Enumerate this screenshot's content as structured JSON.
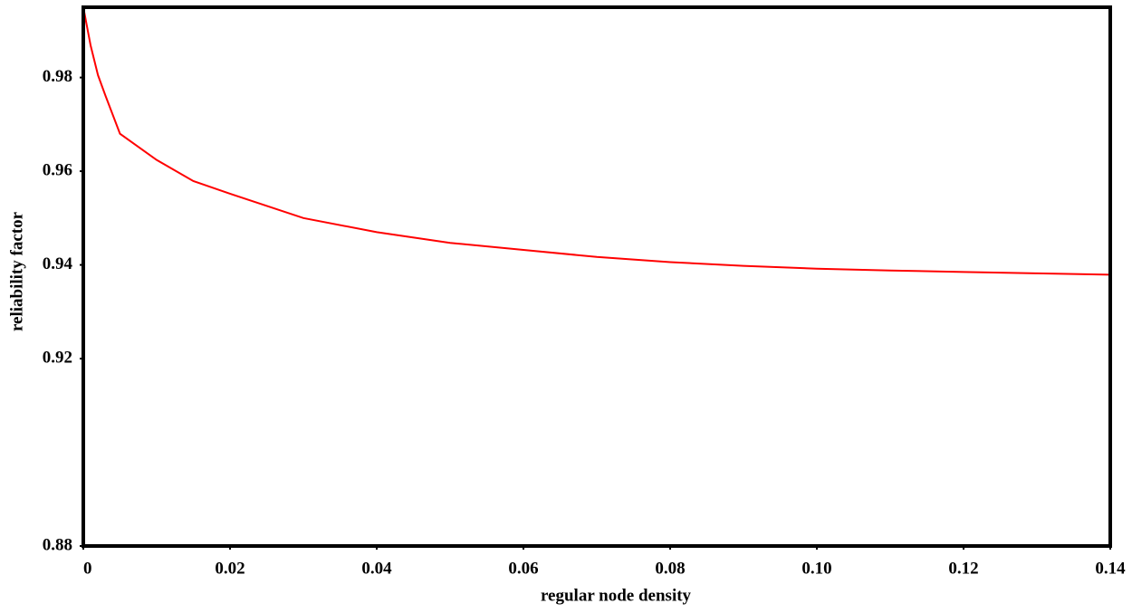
{
  "chart_data": {
    "type": "line",
    "x_label": "regular node density",
    "y_label": "reliability factor",
    "x": [
      0,
      0.001,
      0.002,
      0.003,
      0.005,
      0.01,
      0.015,
      0.02,
      0.03,
      0.04,
      0.05,
      0.06,
      0.07,
      0.08,
      0.09,
      0.1,
      0.11,
      0.12,
      0.13,
      0.14
    ],
    "values": [
      0.995,
      0.9868,
      0.9805,
      0.9762,
      0.968,
      0.9624,
      0.9579,
      0.9552,
      0.95,
      0.947,
      0.9447,
      0.9432,
      0.9417,
      0.9406,
      0.9398,
      0.9392,
      0.9388,
      0.9385,
      0.9382,
      0.9379
    ],
    "color": "#ff0000",
    "xlim": [
      0,
      0.14
    ],
    "xticks": [
      0,
      0.02,
      0.04,
      0.06,
      0.08,
      {
        "value": 0.1,
        "label": "0.10"
      },
      0.12,
      0.14
    ],
    "ylim": [
      0.88,
      0.995
    ],
    "yticks": [
      0.88,
      0.92,
      0.94,
      0.96,
      0.98
    ]
  }
}
